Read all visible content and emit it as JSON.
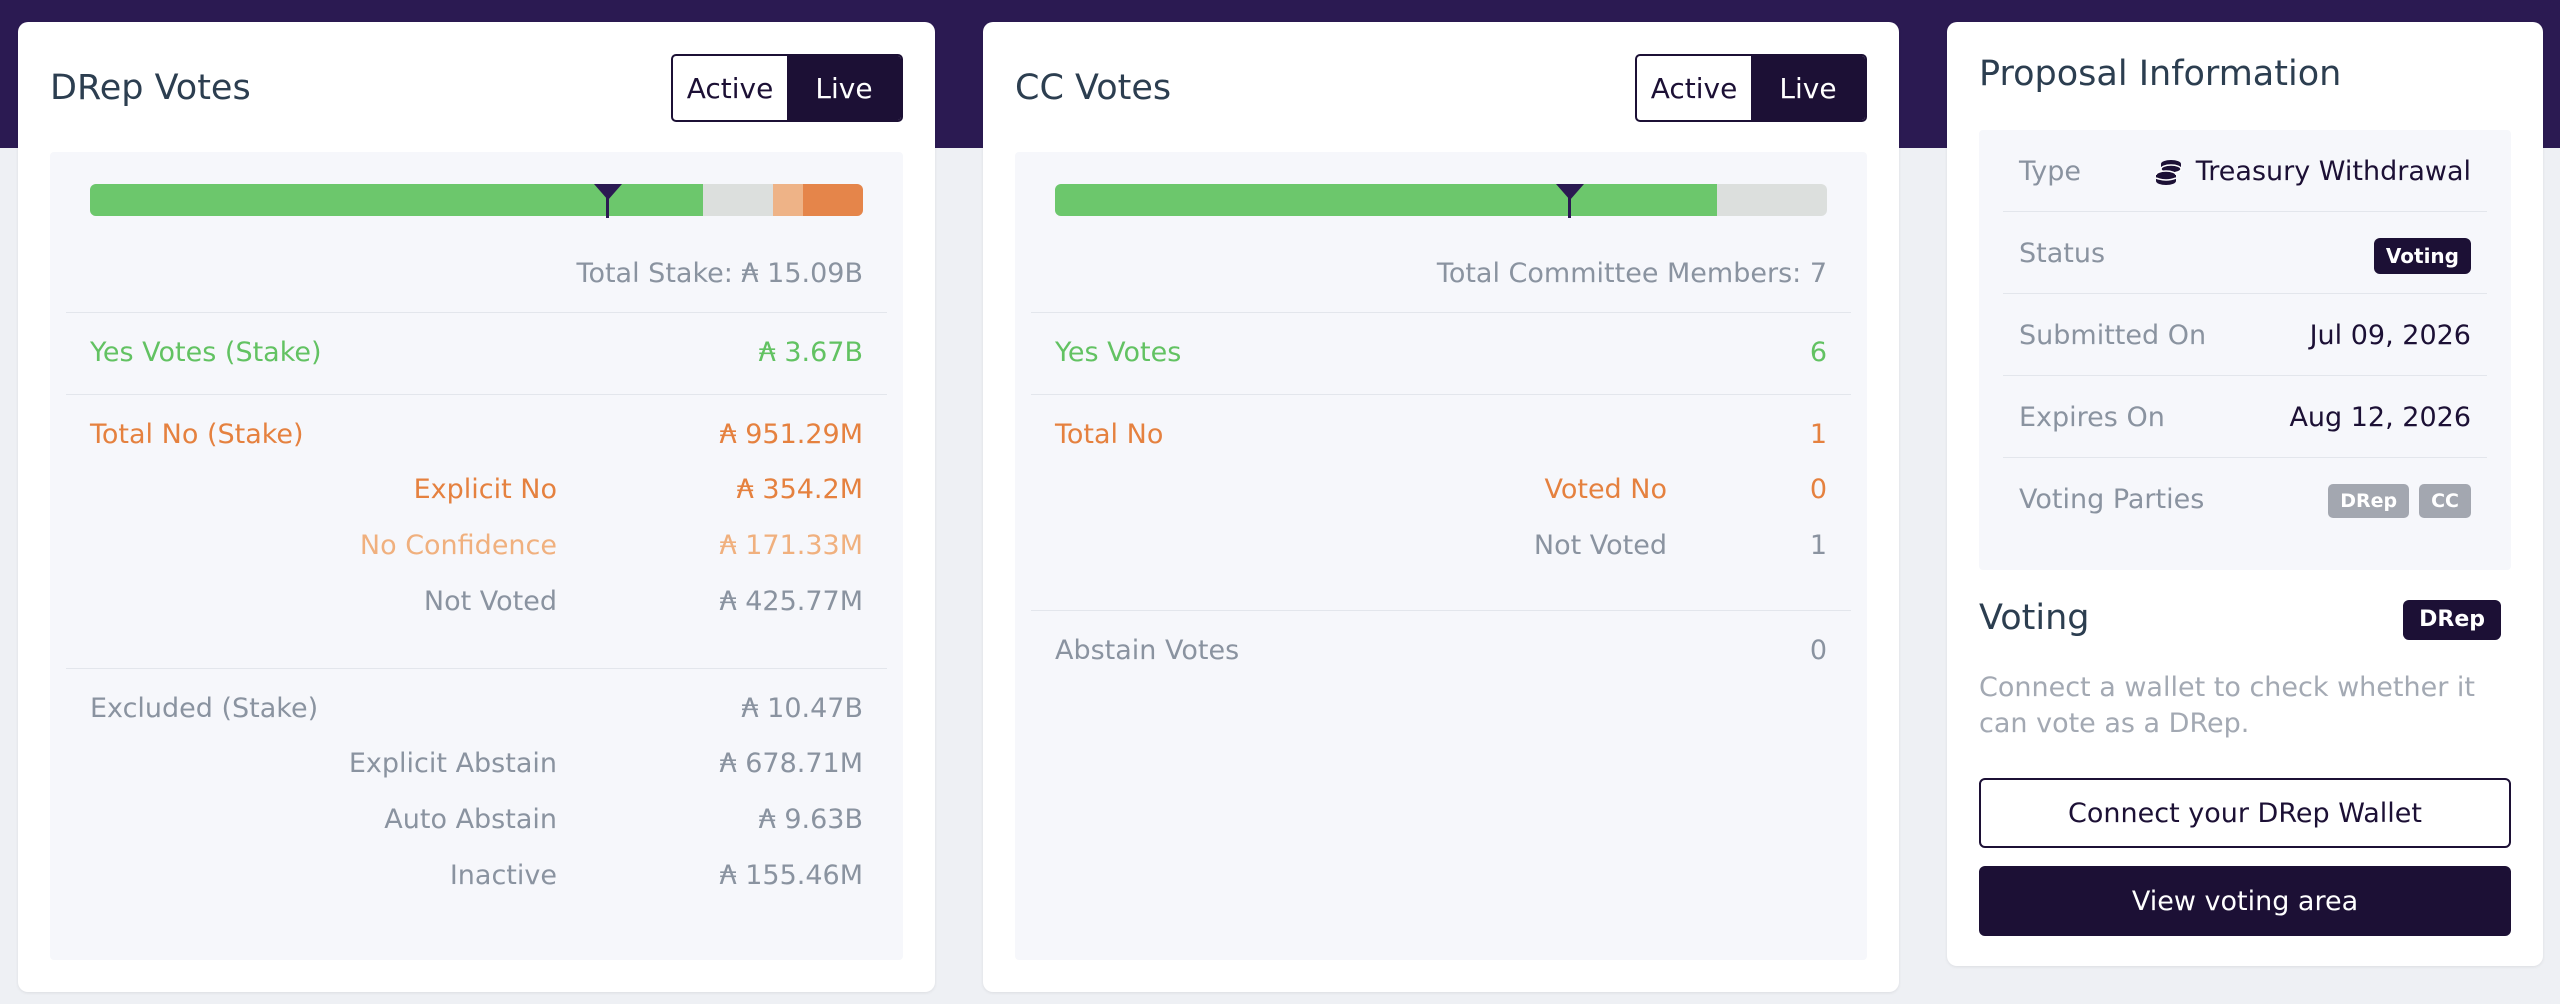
{
  "colors": {
    "accent_dark": "#1c1035",
    "header_band": "#2b1a52",
    "yes_green": "#6cc76c",
    "no_orange": "#e5854a",
    "no_confidence_orange": "#eeb387",
    "neutral_grey": "#dcdfdd"
  },
  "drep": {
    "title": "DRep Votes",
    "toggle": {
      "active": "Active",
      "live": "Live",
      "selected": "Live"
    },
    "bar": {
      "yes_fraction": 0.793,
      "no_confidence_fraction": 0.038,
      "explicit_no_fraction": 0.078,
      "threshold_fraction": 0.67
    },
    "total": "Total Stake: ₳ 15.09B",
    "yes": {
      "label": "Yes Votes (Stake)",
      "value": "₳ 3.67B"
    },
    "no": {
      "label": "Total No (Stake)",
      "value": "₳ 951.29M",
      "explicit_label": "Explicit No",
      "explicit_value": "₳ 354.2M",
      "confidence_label": "No Confidence",
      "confidence_value": "₳ 171.33M",
      "notvoted_label": "Not Voted",
      "notvoted_value": "₳ 425.77M"
    },
    "excluded": {
      "label": "Excluded (Stake)",
      "value": "₳ 10.47B",
      "abstain_label": "Explicit Abstain",
      "abstain_value": "₳ 678.71M",
      "auto_label": "Auto Abstain",
      "auto_value": "₳ 9.63B",
      "inactive_label": "Inactive",
      "inactive_value": "₳ 155.46M"
    }
  },
  "cc": {
    "title": "CC Votes",
    "toggle": {
      "active": "Active",
      "live": "Live",
      "selected": "Live"
    },
    "bar": {
      "yes_fraction": 0.857,
      "threshold_fraction": 0.667
    },
    "total": "Total Committee Members: 7",
    "yes": {
      "label": "Yes Votes",
      "value": "6"
    },
    "no": {
      "label": "Total No",
      "value": "1",
      "voted_label": "Voted No",
      "voted_value": "0",
      "notvoted_label": "Not Voted",
      "notvoted_value": "1"
    },
    "abstain": {
      "label": "Abstain Votes",
      "value": "0"
    }
  },
  "info": {
    "title": "Proposal Information",
    "type_label": "Type",
    "type_value": "Treasury Withdrawal",
    "type_icon": "coins-icon",
    "status_label": "Status",
    "status_value": "Voting",
    "submitted_label": "Submitted On",
    "submitted_value": "Jul 09, 2026",
    "expires_label": "Expires On",
    "expires_value": "Aug 12, 2026",
    "parties_label": "Voting Parties",
    "party_1": "DRep",
    "party_2": "CC"
  },
  "voting": {
    "title": "Voting",
    "role": "DRep",
    "description": "Connect a wallet to check whether it can vote as a DRep.",
    "connect_button": "Connect your DRep Wallet",
    "view_button": "View voting area"
  }
}
